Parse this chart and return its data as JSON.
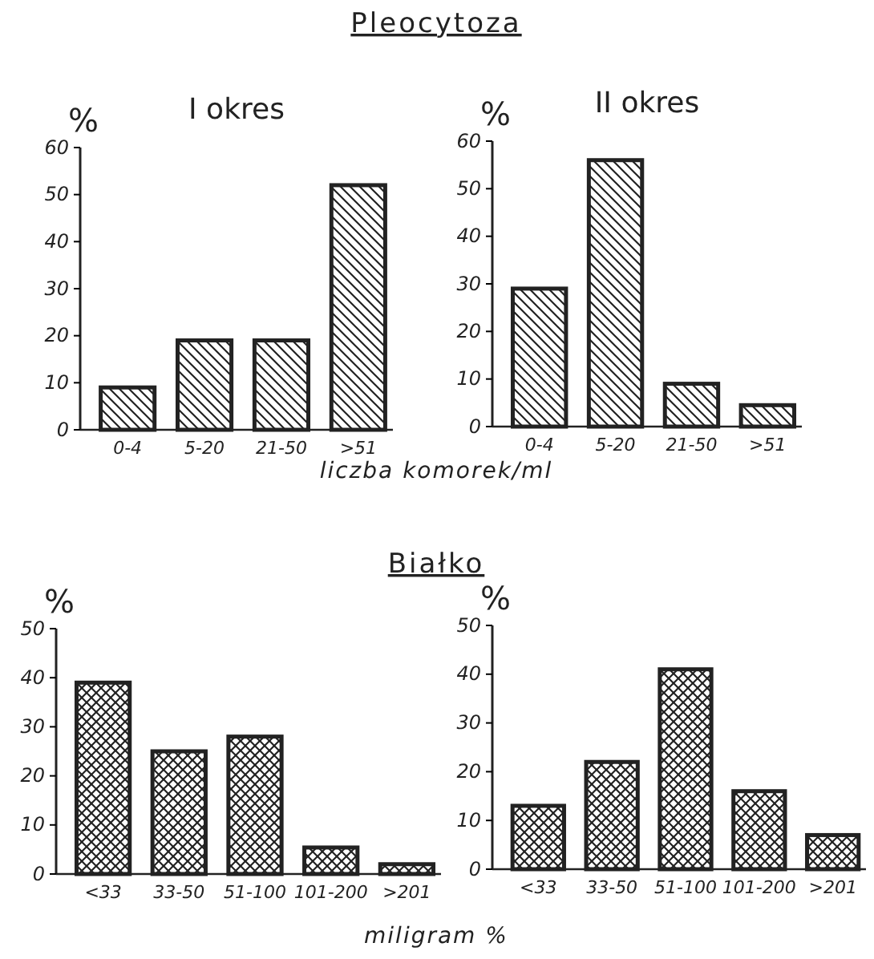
{
  "chart_data": [
    {
      "type": "bar",
      "title": "Pleocytoza",
      "subtitle": "I okres",
      "ylabel": "%",
      "xlabel": "liczba komorek/ml",
      "categories": [
        "0-4",
        "5-20",
        "21-50",
        ">51"
      ],
      "values": [
        9,
        19,
        19,
        52
      ],
      "color": "#222222",
      "ylim": [
        0,
        60
      ],
      "yticks": [
        0,
        10,
        20,
        30,
        40,
        50,
        60
      ],
      "grid": false
    },
    {
      "type": "bar",
      "subtitle": "II okres",
      "ylabel": "%",
      "categories": [
        "0-4",
        "5-20",
        "21-50",
        ">51"
      ],
      "values": [
        29,
        56,
        9,
        4.5
      ],
      "color": "#222222",
      "ylim": [
        0,
        60
      ],
      "yticks": [
        0,
        10,
        20,
        30,
        40,
        50,
        60
      ],
      "grid": false
    },
    {
      "type": "bar",
      "title": "Białko",
      "ylabel": "%",
      "xlabel": "miligram %",
      "categories": [
        "<33",
        "33-50",
        "51-100",
        "101-200",
        ">201"
      ],
      "values": [
        39,
        25,
        28,
        5.4,
        2
      ],
      "color": "#222222",
      "ylim": [
        0,
        50
      ],
      "yticks": [
        0,
        10,
        20,
        30,
        40,
        50
      ],
      "grid": false
    },
    {
      "type": "bar",
      "ylabel": "%",
      "categories": [
        "<33",
        "33-50",
        "51-100",
        "101-200",
        ">201"
      ],
      "values": [
        13,
        22,
        41,
        16,
        7
      ],
      "color": "#222222",
      "ylim": [
        0,
        50
      ],
      "yticks": [
        0,
        10,
        20,
        30,
        40,
        50
      ],
      "grid": false
    }
  ]
}
